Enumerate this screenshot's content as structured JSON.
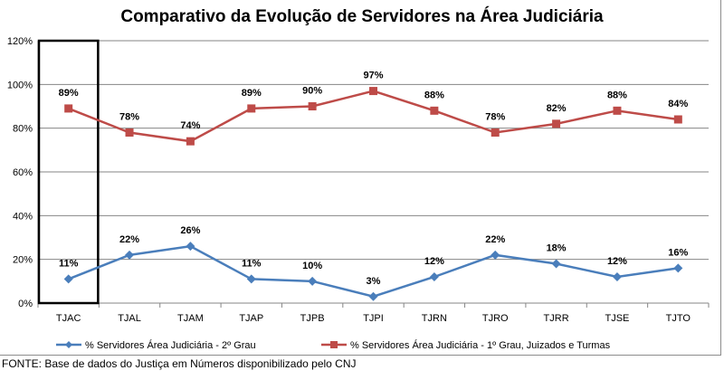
{
  "chart_data": {
    "type": "line",
    "title": "Comparativo da Evolução de Servidores na Área Judiciária",
    "categories": [
      "TJAC",
      "TJAL",
      "TJAM",
      "TJAP",
      "TJPB",
      "TJPI",
      "TJRN",
      "TJRO",
      "TJRR",
      "TJSE",
      "TJTO"
    ],
    "ylim": [
      0,
      120
    ],
    "yticks": [
      "0%",
      "20%",
      "40%",
      "60%",
      "80%",
      "100%",
      "120%"
    ],
    "grid": true,
    "legend_position": "bottom",
    "highlighted_category": "TJAC",
    "series": [
      {
        "name": "% Servidores Área Judiciária - 2º Grau",
        "color": "#4a7ebb",
        "marker": "diamond",
        "values": [
          11,
          22,
          26,
          11,
          10,
          3,
          12,
          22,
          18,
          12,
          16
        ],
        "labels": [
          "11%",
          "22%",
          "26%",
          "11%",
          "10%",
          "3%",
          "12%",
          "22%",
          "18%",
          "12%",
          "16%"
        ]
      },
      {
        "name": "% Servidores Área Judiciária - 1º Grau, Juizados e Turmas",
        "color": "#be4b48",
        "marker": "square",
        "values": [
          89,
          78,
          74,
          89,
          90,
          97,
          88,
          78,
          82,
          88,
          84
        ],
        "labels": [
          "89%",
          "78%",
          "74%",
          "89%",
          "90%",
          "97%",
          "88%",
          "78%",
          "82%",
          "88%",
          "84%"
        ]
      }
    ]
  },
  "source": "FONTE: Base de dados do Justiça em Números disponibilizado pelo CNJ"
}
